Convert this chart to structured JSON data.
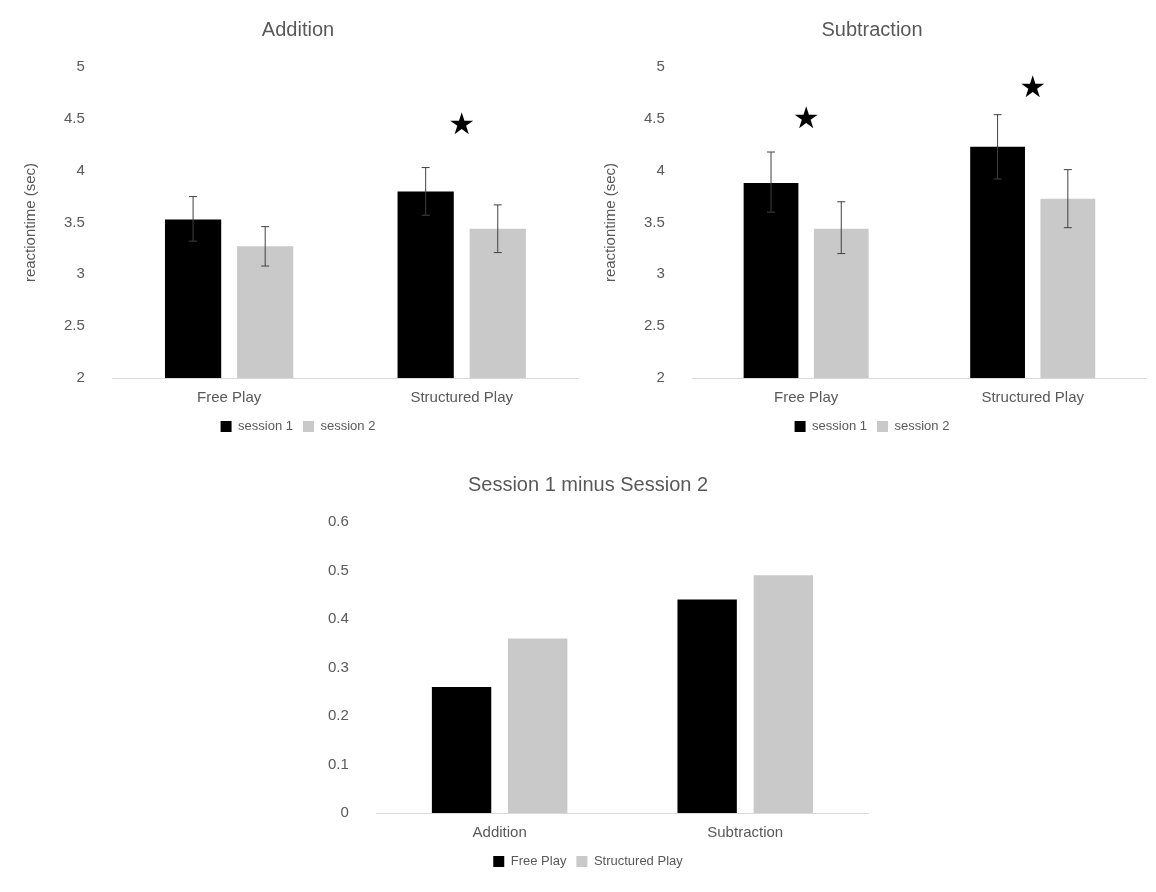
{
  "chart_data": [
    {
      "type": "bar",
      "title": "Addition",
      "ylabel": "reactiontime (sec)",
      "categories": [
        "Free Play",
        "Structured Play"
      ],
      "ylim": [
        2,
        5
      ],
      "yticks": [
        2,
        2.5,
        3,
        3.5,
        4,
        4.5,
        5
      ],
      "legend": "bottom",
      "series": [
        {
          "name": "session 1",
          "color": "#000000",
          "values": [
            3.53,
            3.8
          ],
          "errors": [
            [
              3.32,
              3.75
            ],
            [
              3.57,
              4.03
            ]
          ]
        },
        {
          "name": "session 2",
          "color": "#c9c9c9",
          "values": [
            3.27,
            3.44
          ],
          "errors": [
            [
              3.08,
              3.46
            ],
            [
              3.21,
              3.67
            ]
          ]
        }
      ],
      "annotations": [
        "★"
      ]
    },
    {
      "type": "bar",
      "title": "Subtraction",
      "ylabel": "reactiontime (sec)",
      "categories": [
        "Free Play",
        "Structured Play"
      ],
      "ylim": [
        2,
        5
      ],
      "yticks": [
        2,
        2.5,
        3,
        3.5,
        4,
        4.5,
        5
      ],
      "legend": "bottom",
      "series": [
        {
          "name": "session 1",
          "color": "#000000",
          "values": [
            3.88,
            4.23
          ],
          "errors": [
            [
              3.6,
              4.18
            ],
            [
              3.92,
              4.54
            ]
          ]
        },
        {
          "name": "session 2",
          "color": "#c9c9c9",
          "values": [
            3.44,
            3.73
          ],
          "errors": [
            [
              3.2,
              3.7
            ],
            [
              3.45,
              4.01
            ]
          ]
        }
      ],
      "annotations": [
        "★",
        "★"
      ]
    },
    {
      "type": "bar",
      "title": "Session 1 minus Session 2",
      "categories": [
        "Addition",
        "Subtraction"
      ],
      "ylim": [
        0,
        0.6
      ],
      "yticks": [
        0,
        0.1,
        0.2,
        0.3,
        0.4,
        0.5,
        0.6
      ],
      "legend": "bottom",
      "series": [
        {
          "name": "Free Play",
          "color": "#000000",
          "values": [
            0.26,
            0.44
          ]
        },
        {
          "name": "Structured Play",
          "color": "#c9c9c9",
          "values": [
            0.36,
            0.49
          ]
        }
      ]
    }
  ]
}
